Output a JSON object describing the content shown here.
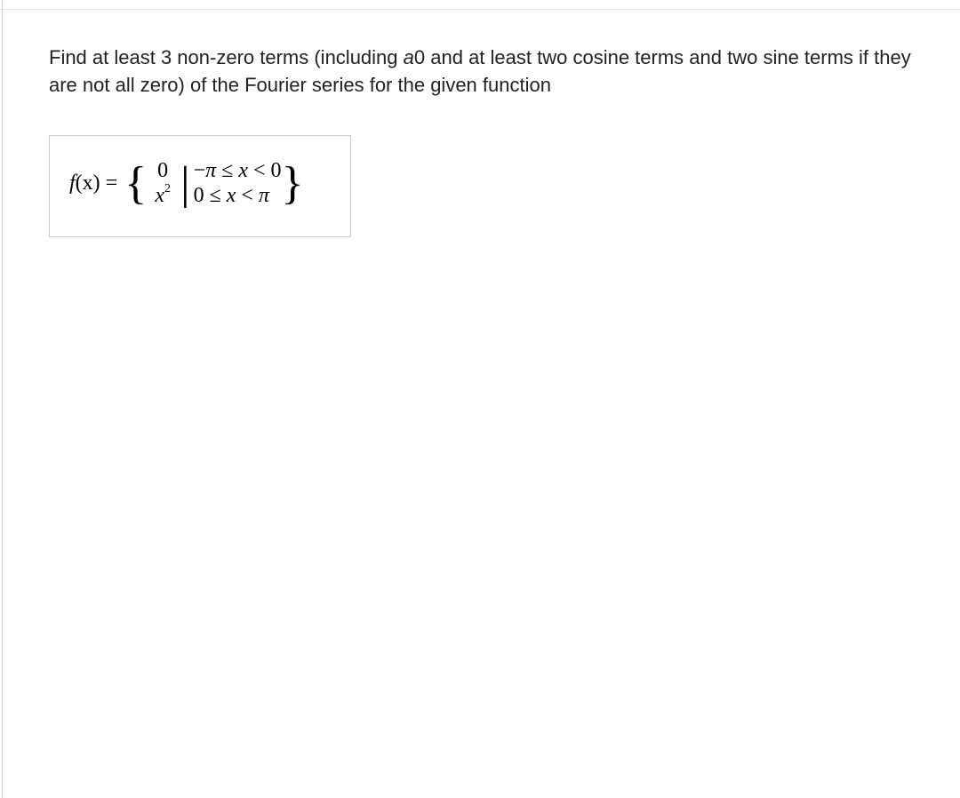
{
  "problem": {
    "text_part1": "Find at least 3 non-zero terms (including ",
    "a0": "a",
    "a0_sub": "0",
    "text_part2": " and at least two cosine terms and two sine terms if they are not all zero) of the Fourier series for the given function"
  },
  "equation": {
    "lhs_func": "f",
    "lhs_var": "(x)",
    "equals": " = ",
    "piece1_val": "0",
    "piece2_val_base": "x",
    "piece2_val_exp": "2",
    "cond1_prefix": "−",
    "cond1_pi": "π",
    "cond1_rel": " ≤ ",
    "cond1_var": "x",
    "cond1_rel2": " < ",
    "cond1_rhs": "0",
    "cond2_lhs": "0",
    "cond2_rel": " ≤ ",
    "cond2_var": "x",
    "cond2_rel2": " < ",
    "cond2_pi": "π"
  },
  "styling": {
    "page_bg": "#ffffff",
    "text_color": "#222222",
    "border_color": "#cccccc",
    "divider_color": "#e0e0e0",
    "problem_fontsize": 22,
    "equation_fontsize": 24,
    "brace_fontsize": 52
  }
}
